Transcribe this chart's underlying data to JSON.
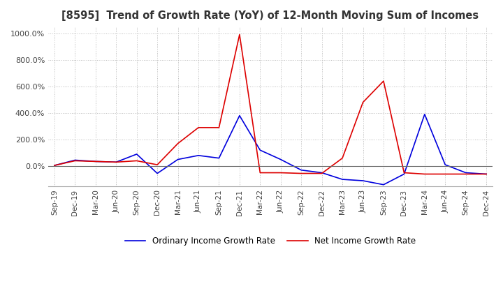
{
  "title": "[8595]  Trend of Growth Rate (YoY) of 12-Month Moving Sum of Incomes",
  "ylim": [
    -150,
    1050
  ],
  "yticks": [
    0.0,
    200.0,
    400.0,
    600.0,
    800.0,
    1000.0
  ],
  "ytick_labels": [
    "0.0%",
    "200.0%",
    "400.0%",
    "600.0%",
    "800.0%",
    "1000.0%"
  ],
  "background_color": "#ffffff",
  "grid_color": "#bbbbbb",
  "grid_style": "dotted",
  "ordinary_color": "#0000dd",
  "net_color": "#dd0000",
  "legend_ordinary": "Ordinary Income Growth Rate",
  "legend_net": "Net Income Growth Rate",
  "x_labels": [
    "Sep-19",
    "Dec-19",
    "Mar-20",
    "Jun-20",
    "Sep-20",
    "Dec-20",
    "Mar-21",
    "Jun-21",
    "Sep-21",
    "Dec-21",
    "Mar-22",
    "Jun-22",
    "Sep-22",
    "Dec-22",
    "Mar-23",
    "Jun-23",
    "Sep-23",
    "Dec-23",
    "Mar-24",
    "Jun-24",
    "Sep-24",
    "Dec-24"
  ],
  "ordinary_income": [
    5,
    45,
    35,
    30,
    90,
    -55,
    50,
    80,
    60,
    380,
    120,
    50,
    -30,
    -50,
    -100,
    -110,
    -140,
    -60,
    390,
    10,
    -50,
    -60
  ],
  "net_income": [
    5,
    40,
    35,
    30,
    40,
    10,
    170,
    290,
    290,
    990,
    -50,
    -50,
    -55,
    -55,
    60,
    480,
    640,
    -50,
    -60,
    -60,
    -60,
    -60
  ]
}
